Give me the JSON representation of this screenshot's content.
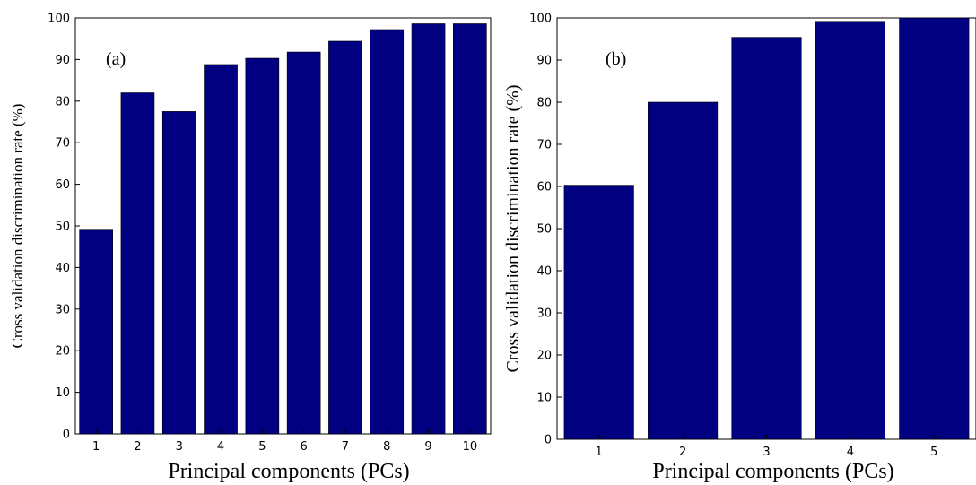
{
  "chart_data": [
    {
      "type": "bar",
      "panel_label": "(a)",
      "categories": [
        "1",
        "2",
        "3",
        "4",
        "5",
        "6",
        "7",
        "8",
        "9",
        "10"
      ],
      "values": [
        49.2,
        82,
        77.5,
        88.8,
        90.3,
        91.8,
        94.4,
        97.2,
        98.6,
        98.6
      ],
      "title": "",
      "xlabel": "Principal components (PCs)",
      "ylabel": "Cross validation discrimination rate (%)",
      "ylim": [
        0,
        100
      ],
      "yticks": [
        "0",
        "10",
        "20",
        "30",
        "40",
        "50",
        "60",
        "70",
        "80",
        "90",
        "100"
      ],
      "bar_color": "#000080",
      "grid": false
    },
    {
      "type": "bar",
      "panel_label": "(b)",
      "categories": [
        "1",
        "2",
        "3",
        "4",
        "5"
      ],
      "values": [
        60.3,
        80,
        95.4,
        99.2,
        100
      ],
      "title": "",
      "xlabel": "Principal components (PCs)",
      "ylabel": "Cross validation discrimination rate (%)",
      "ylim": [
        0,
        100
      ],
      "yticks": [
        "0",
        "10",
        "20",
        "30",
        "40",
        "50",
        "60",
        "70",
        "80",
        "90",
        "100"
      ],
      "bar_color": "#000080",
      "grid": false
    }
  ]
}
